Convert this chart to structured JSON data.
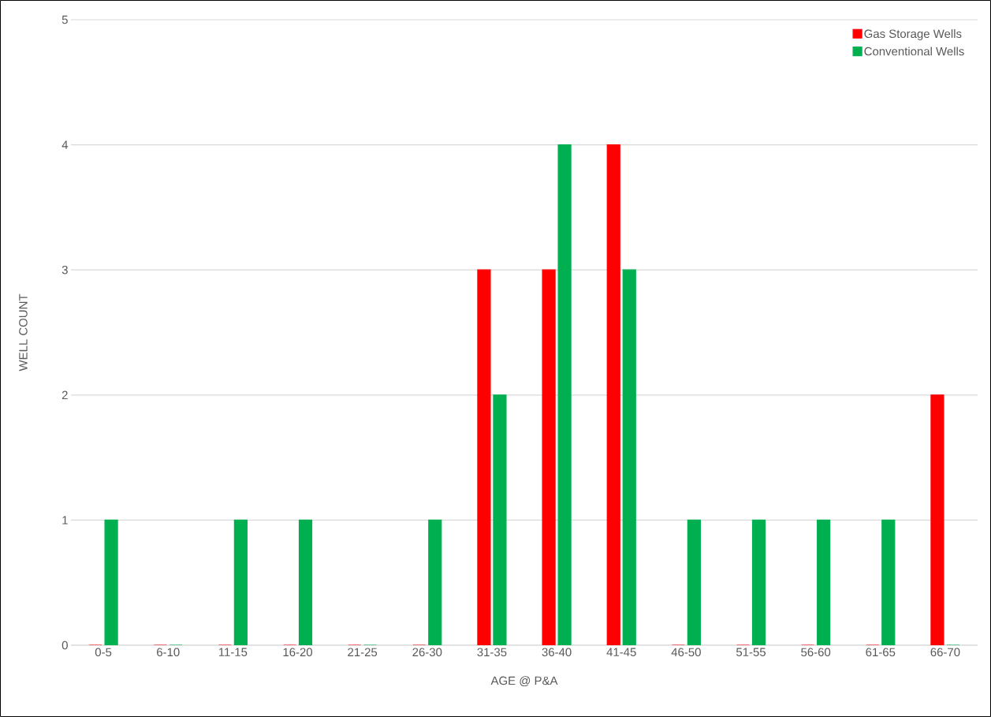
{
  "chart_data": {
    "type": "bar",
    "xlabel": "AGE @ P&A",
    "ylabel": "WELL COUNT",
    "categories": [
      "0-5",
      "6-10",
      "11-15",
      "16-20",
      "21-25",
      "26-30",
      "31-35",
      "36-40",
      "41-45",
      "46-50",
      "51-55",
      "56-60",
      "61-65",
      "66-70"
    ],
    "series": [
      {
        "name": "Gas Storage Wells",
        "color": "#ff0000",
        "values": [
          0,
          0,
          0,
          0,
          0,
          0,
          3,
          3,
          4,
          0,
          0,
          0,
          0,
          2
        ]
      },
      {
        "name": "Conventional Wells",
        "color": "#00b050",
        "values": [
          1,
          0,
          1,
          1,
          0,
          1,
          2,
          4,
          3,
          1,
          1,
          1,
          1,
          0
        ]
      }
    ],
    "ylim": [
      0,
      5
    ],
    "yticks": [
      0,
      1,
      2,
      3,
      4,
      5
    ],
    "grid": "y",
    "legend": "top right"
  }
}
